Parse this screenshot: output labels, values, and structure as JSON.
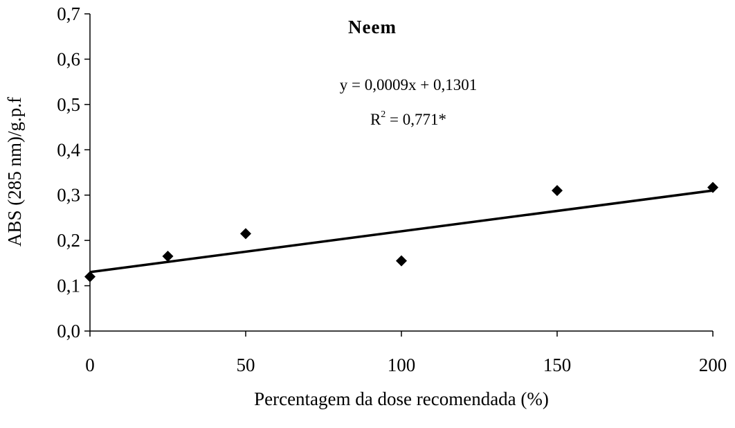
{
  "chart_data": {
    "type": "scatter",
    "title": "Neem",
    "xlabel": "Percentagem da dose recomendada (%)",
    "ylabel": "ABS (285 nm)/g.p.f",
    "xlim": [
      0,
      200
    ],
    "ylim": [
      0,
      0.7
    ],
    "x_ticks": [
      0,
      50,
      100,
      150,
      200
    ],
    "x_tick_labels": [
      "0",
      "50",
      "100",
      "150",
      "200"
    ],
    "y_ticks": [
      0,
      0.1,
      0.2,
      0.3,
      0.4,
      0.5,
      0.6,
      0.7
    ],
    "y_tick_labels": [
      "0,0",
      "0,1",
      "0,2",
      "0,3",
      "0,4",
      "0,5",
      "0,6",
      "0,7"
    ],
    "grid": false,
    "legend": "none",
    "series": [
      {
        "marker": "diamond",
        "color": "#000000",
        "x": [
          0,
          25,
          50,
          100,
          150,
          200
        ],
        "y": [
          0.12,
          0.165,
          0.215,
          0.155,
          0.31,
          0.317
        ]
      }
    ],
    "trendline": {
      "slope": 0.0009,
      "intercept": 0.1301,
      "x_range": [
        0,
        200
      ],
      "equation": "y = 0,0009x + 0,1301",
      "r2_prefix": "R",
      "r2_superscript": "2",
      "r2_value": " = 0,771*"
    }
  }
}
